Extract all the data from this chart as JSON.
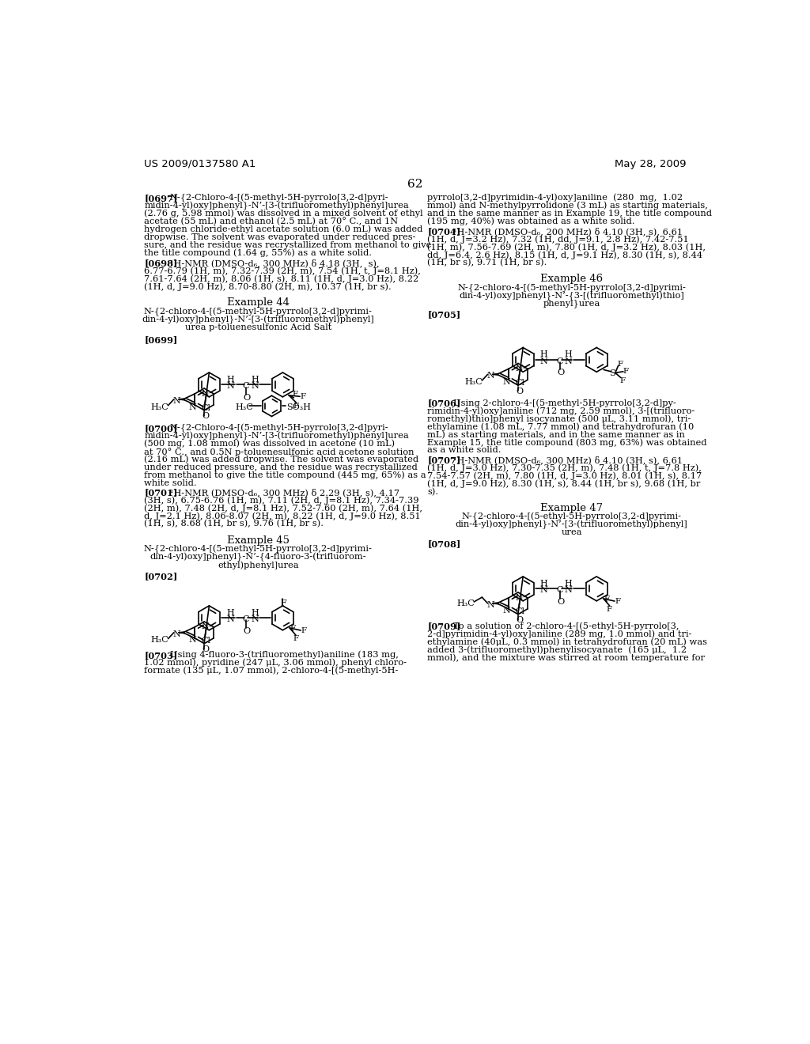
{
  "background_color": "#ffffff",
  "header_left": "US 2009/0137580 A1",
  "header_right": "May 28, 2009",
  "page_number": "62"
}
